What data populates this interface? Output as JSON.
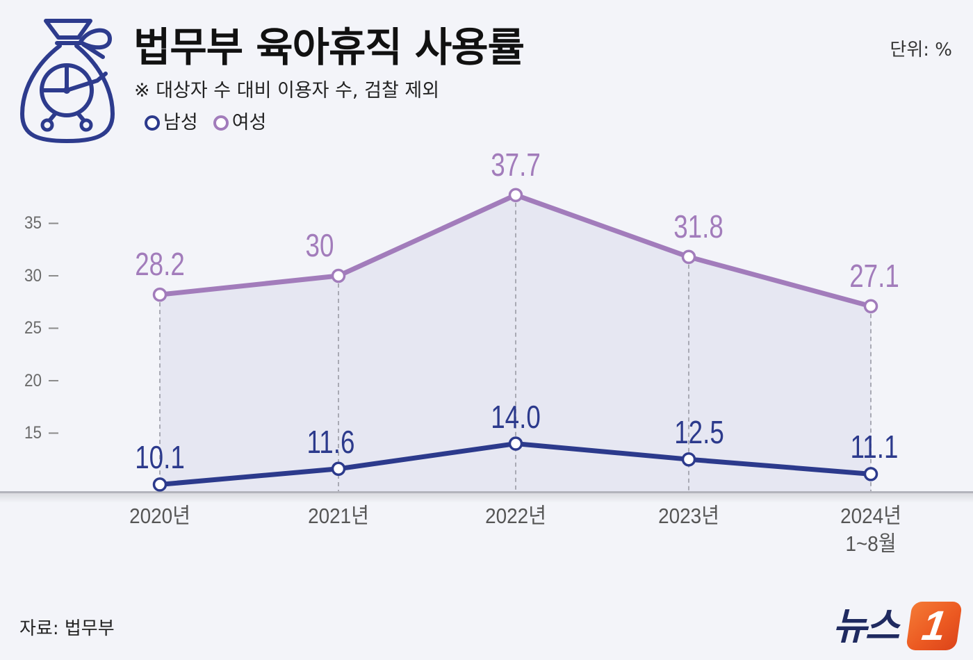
{
  "chart_data": {
    "type": "line",
    "title": "법무부 육아휴직 사용률",
    "subtitle": "※ 대상자 수 대비 이용자 수, 검찰 제외",
    "unit_label": "단위: %",
    "xlabel": "",
    "ylabel": "",
    "categories": [
      "2020년",
      "2021년",
      "2022년",
      "2023년",
      "2024년\n1~8월"
    ],
    "series": [
      {
        "name": "남성",
        "color": "#2c3a8c",
        "values": [
          10.1,
          11.6,
          14.0,
          12.5,
          11.1
        ],
        "labels": [
          "10.1",
          "11.6",
          "14.0",
          "12.5",
          "11.1"
        ],
        "area_fill": false
      },
      {
        "name": "여성",
        "color": "#a27cbb",
        "values": [
          28.2,
          30,
          37.7,
          31.8,
          27.1
        ],
        "labels": [
          "28.2",
          "30",
          "37.7",
          "31.8",
          "27.1"
        ],
        "area_fill": true
      }
    ],
    "y_ticks": [
      35,
      30,
      25,
      20,
      15
    ],
    "ylim": [
      9.4,
      40
    ],
    "grid": false,
    "drop_lines": true,
    "legend_position": "top-left"
  },
  "source": "자료: 법무부",
  "logo": {
    "text": "뉴스",
    "mark": "1"
  },
  "icons": {
    "header": "money-bag-stroller-icon"
  },
  "colors": {
    "background": "#f3f4f9",
    "area_fill": "#e6e7f2",
    "drop_line": "#a9aab4",
    "baseline": "#b3b4bc",
    "tick_mark": "#8a8a8a",
    "icon": "#2d3b8d",
    "logo_navy": "#1f2a60",
    "logo_orange": "#ec5a22"
  }
}
